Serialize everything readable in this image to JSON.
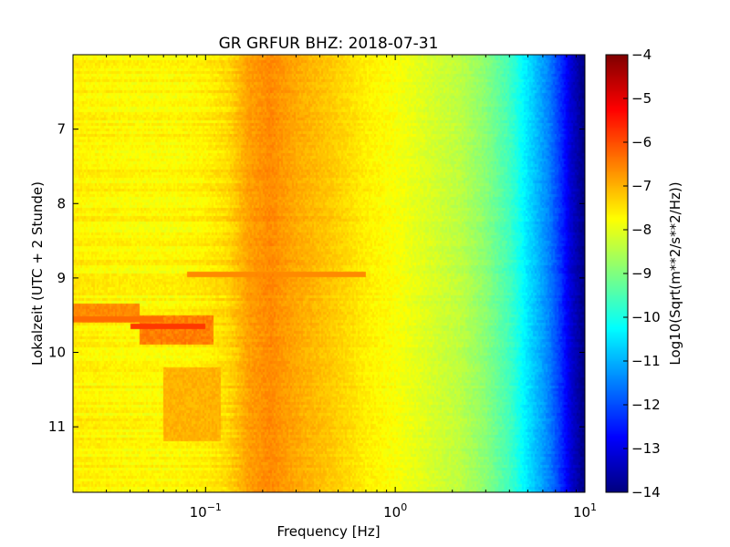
{
  "chart_data": {
    "type": "heatmap",
    "title": "GR GRFUR BHZ: 2018-07-31",
    "xlabel": "Frequency [Hz]",
    "ylabel": "Lokalzeit (UTC + 2 Stunde)",
    "x_scale": "log",
    "xlim": [
      0.02,
      10
    ],
    "ylim": [
      11.88,
      6.0
    ],
    "y_inverted": true,
    "x_ticks": [
      {
        "value": 0.1,
        "base": "10",
        "exp": "−1"
      },
      {
        "value": 1,
        "base": "10",
        "exp": "0"
      },
      {
        "value": 10,
        "base": "10",
        "exp": "1"
      }
    ],
    "y_ticks": [
      {
        "value": 7,
        "label": "7"
      },
      {
        "value": 8,
        "label": "8"
      },
      {
        "value": 9,
        "label": "9"
      },
      {
        "value": 10,
        "label": "10"
      },
      {
        "value": 11,
        "label": "11"
      }
    ],
    "colorbar": {
      "label": "Log10(Sqrt(m**2/s**2/Hz))",
      "colormap": "jet",
      "range": [
        -14,
        -4
      ],
      "ticks": [
        "−4",
        "−5",
        "−6",
        "−7",
        "−8",
        "−9",
        "−10",
        "−11",
        "−12",
        "−13",
        "−14"
      ]
    },
    "spectrum_profile": {
      "freq_hz": [
        0.02,
        0.04,
        0.07,
        0.1,
        0.13,
        0.17,
        0.22,
        0.3,
        0.45,
        0.7,
        1.0,
        1.5,
        2.2,
        3.0,
        4.0,
        5.0,
        6.5,
        7.5,
        8.5,
        10
      ],
      "log10_amplitude": [
        -7.6,
        -7.7,
        -7.7,
        -7.6,
        -7.4,
        -6.8,
        -6.6,
        -6.9,
        -7.2,
        -7.6,
        -7.8,
        -8.1,
        -8.4,
        -8.9,
        -9.6,
        -10.5,
        -11.5,
        -12.3,
        -13.2,
        -14.0
      ]
    },
    "events": [
      {
        "time_h": 8.95,
        "freq_range_hz": [
          0.08,
          0.7
        ],
        "log10_amplitude": -6.6
      },
      {
        "time_h": 9.55,
        "freq_range_hz": [
          0.02,
          0.06
        ],
        "log10_amplitude": -6.3
      },
      {
        "time_h": 9.65,
        "freq_range_hz": [
          0.04,
          0.1
        ],
        "log10_amplitude": -5.8
      }
    ]
  }
}
